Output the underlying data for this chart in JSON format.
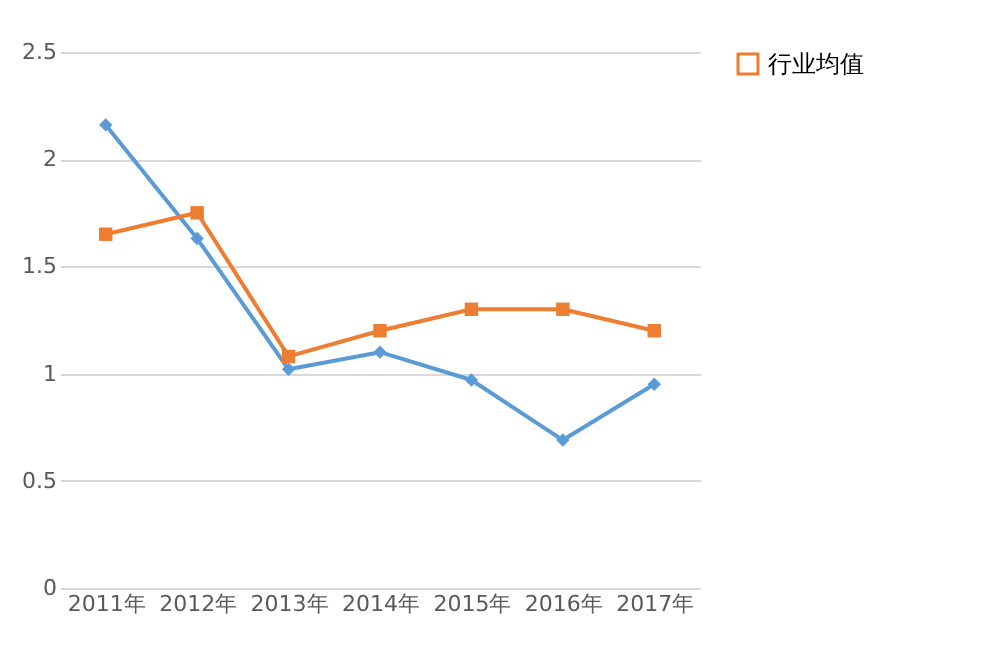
{
  "chart_data": {
    "type": "line",
    "categories": [
      "2011年",
      "2012年",
      "2013年",
      "2014年",
      "2015年",
      "2016年",
      "2017年"
    ],
    "series": [
      {
        "color": "#5b9bd5",
        "marker": "diamond",
        "values": [
          2.16,
          1.63,
          1.02,
          1.1,
          0.97,
          0.69,
          0.95
        ]
      },
      {
        "name": "行业均值",
        "color": "#ed7d31",
        "marker": "square",
        "values": [
          1.65,
          1.75,
          1.08,
          1.2,
          1.3,
          1.3,
          1.2
        ]
      }
    ],
    "ylim": [
      0,
      2.5
    ],
    "yticks": [
      0,
      0.5,
      1,
      1.5,
      2,
      2.5
    ],
    "grid": "y",
    "legend": "right",
    "line_style": "solid"
  }
}
